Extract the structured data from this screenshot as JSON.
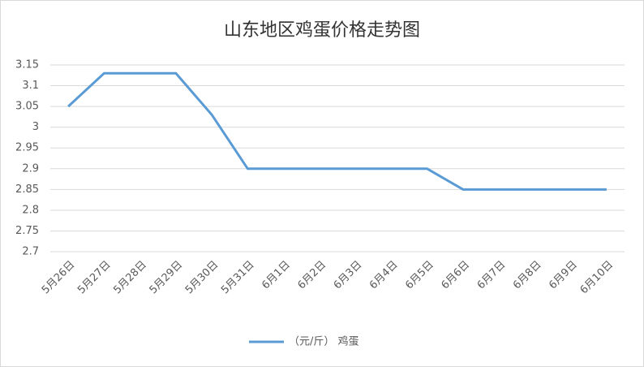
{
  "chart_data": {
    "type": "line",
    "title": "山东地区鸡蛋价格走势图",
    "categories": [
      "5月26日",
      "5月27日",
      "5月28日",
      "5月29日",
      "5月30日",
      "5月31日",
      "6月1日",
      "6月2日",
      "6月3日",
      "6月4日",
      "6月5日",
      "6月6日",
      "6月7日",
      "6月8日",
      "6月9日",
      "6月10日"
    ],
    "series": [
      {
        "name": "（元/斤） 鸡蛋",
        "color": "#5b9bd5",
        "values": [
          3.05,
          3.13,
          3.13,
          3.13,
          3.03,
          2.9,
          2.9,
          2.9,
          2.9,
          2.9,
          2.9,
          2.85,
          2.85,
          2.85,
          2.85,
          2.85
        ]
      }
    ],
    "ylim": [
      2.7,
      3.15
    ],
    "yticks": [
      2.7,
      2.75,
      2.8,
      2.85,
      2.9,
      2.95,
      3,
      3.05,
      3.1,
      3.15
    ],
    "grid": true,
    "legend": "bottom"
  }
}
